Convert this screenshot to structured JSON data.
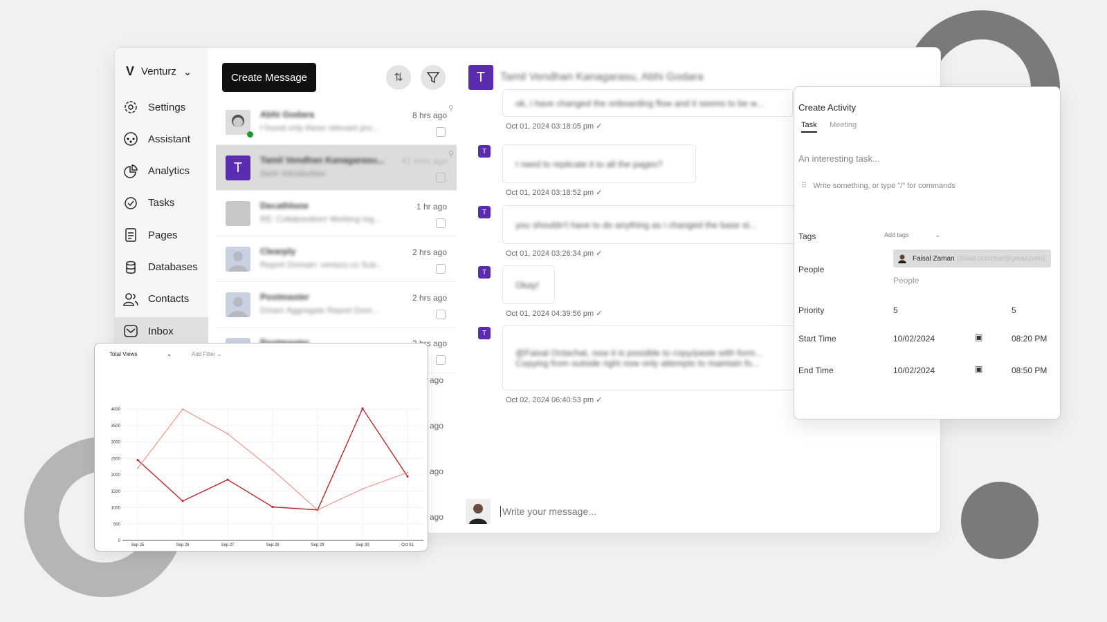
{
  "brand": {
    "name": "Venturz",
    "logo": "V"
  },
  "sidebar": {
    "items": [
      {
        "label": "Settings",
        "icon": "gear-icon"
      },
      {
        "label": "Assistant",
        "icon": "assistant-icon"
      },
      {
        "label": "Analytics",
        "icon": "pie-chart-icon"
      },
      {
        "label": "Tasks",
        "icon": "check-circle-icon"
      },
      {
        "label": "Pages",
        "icon": "page-icon"
      },
      {
        "label": "Databases",
        "icon": "database-icon"
      },
      {
        "label": "Contacts",
        "icon": "contacts-icon"
      },
      {
        "label": "Inbox",
        "icon": "inbox-icon",
        "active": true
      }
    ]
  },
  "list": {
    "create_label": "Create Message",
    "rows": [
      {
        "name": "Abhi Godara",
        "sub": "I found only these relevant pro...",
        "time": "8 hrs ago",
        "avatar": "photo"
      },
      {
        "name": "Tamil Vendhan Kanagarasu...",
        "sub": "Sent: Introduction",
        "time": "41 mins ago",
        "avatar": "T",
        "selected": true
      },
      {
        "name": "Decathlone",
        "sub": "RE: Collaboration! Working tog...",
        "time": "1 hr ago",
        "avatar": "gray"
      },
      {
        "name": "Clearply",
        "sub": "Report Domain: venturz.co Sub...",
        "time": "2 hrs ago",
        "avatar": "person"
      },
      {
        "name": "Postmaster",
        "sub": "Dmarc Aggregate Report Dom...",
        "time": "2 hrs ago",
        "avatar": "person"
      },
      {
        "name": "Postmaster",
        "sub": "",
        "time": "3 hrs ago",
        "avatar": "person"
      }
    ],
    "hidden_times": [
      "ago",
      "ago",
      "ago",
      "ago"
    ]
  },
  "chat": {
    "title": "Tamil Vendhan Kanagarasu, Abhi Godara",
    "messages": [
      {
        "text": "ok, i have changed the onboarding flow and it seems to be w...",
        "time": "Oct 01, 2024 03:18:05 pm"
      },
      {
        "text": "I need to replicate it to all the pages?",
        "time": "Oct 01, 2024 03:18:52 pm"
      },
      {
        "text": "you shouldn't have to do anything as i changed the base st...",
        "time": "Oct 01, 2024 03:26:34 pm"
      },
      {
        "text": "Okay!",
        "time": "Oct 01, 2024 04:39:56 pm"
      },
      {
        "text": "@Faisal Octachat, now it is possible to copy/paste with form... Copying from outside right now only attempts to maintain fo...",
        "time": "Oct 02, 2024 06:40:53 pm"
      }
    ],
    "composer_placeholder": "Write your message...",
    "avatar_letter": "T"
  },
  "activity": {
    "title": "Create Activity",
    "tabs": [
      "Task",
      "Meeting"
    ],
    "active_tab": "Task",
    "title_placeholder": "An interesting task...",
    "body_placeholder": "Write something, or type \"/\" for commands",
    "tags_label": "Tags",
    "tags_placeholder": "Add tags",
    "people_label": "People",
    "person_name": "Faisal Zaman",
    "person_email": "(faisal.octachat@gmail.com)",
    "people_placeholder": "People",
    "priority_label": "Priority",
    "priority_a": "5",
    "priority_b": "5",
    "start_label": "Start Time",
    "start_date": "10/02/2024",
    "start_time": "08:20 PM",
    "end_label": "End Time",
    "end_date": "10/02/2024",
    "end_time": "08:50 PM"
  },
  "chart_data": {
    "type": "line",
    "metric_select": "Total Views",
    "filter_label": "Add Filter",
    "categories": [
      "Sep 25",
      "Sep 26",
      "Sep 27",
      "Sep 28",
      "Sep 29",
      "Sep 30",
      "Oct 01"
    ],
    "ylim": [
      0,
      4000
    ],
    "yticks": [
      0,
      500,
      1000,
      1500,
      2000,
      2500,
      3000,
      3500,
      4000
    ],
    "grid": true,
    "series": [
      {
        "values": [
          2450,
          1200,
          1850,
          1020,
          930,
          4020,
          1950
        ],
        "color": "#c0151b"
      },
      {
        "values": [
          2200,
          4000,
          3250,
          2150,
          930,
          1570,
          2070
        ],
        "color": "#f08070"
      }
    ]
  }
}
